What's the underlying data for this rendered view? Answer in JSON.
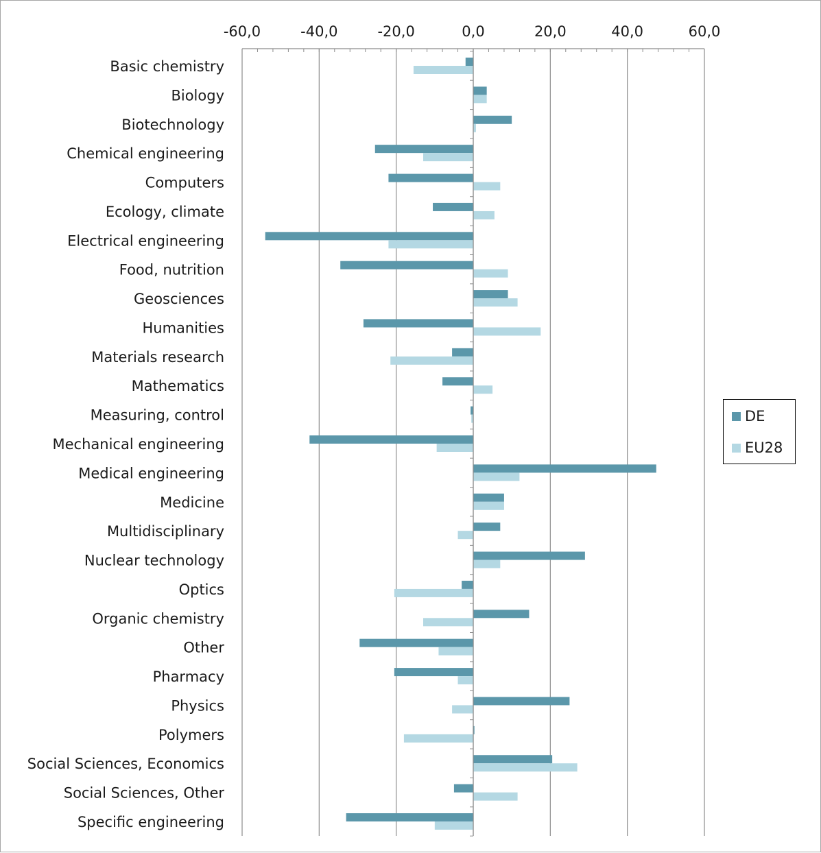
{
  "chart_data": {
    "type": "bar",
    "orientation": "horizontal",
    "categories": [
      "Basic chemistry",
      "Biology",
      "Biotechnology",
      "Chemical engineering",
      "Computers",
      "Ecology, climate",
      "Electrical engineering",
      "Food, nutrition",
      "Geosciences",
      "Humanities",
      "Materials research",
      "Mathematics",
      "Measuring, control",
      "Mechanical engineering",
      "Medical engineering",
      "Medicine",
      "Multidisciplinary",
      "Nuclear technology",
      "Optics",
      "Organic chemistry",
      "Other",
      "Pharmacy",
      "Physics",
      "Polymers",
      "Social Sciences, Economics",
      "Social Sciences, Other",
      "Specific engineering"
    ],
    "series": [
      {
        "name": "DE",
        "color": "#5b97aa",
        "values": [
          -2.0,
          3.5,
          10.0,
          -25.5,
          -22.0,
          -10.5,
          -54.0,
          -34.5,
          9.0,
          -28.5,
          -5.5,
          -8.0,
          -0.7,
          -42.5,
          47.5,
          8.0,
          7.0,
          29.0,
          -3.0,
          14.5,
          -29.5,
          -20.5,
          25.0,
          0.3,
          20.5,
          -5.0,
          -33.0
        ]
      },
      {
        "name": "EU28",
        "color": "#b4d8e3",
        "values": [
          -15.5,
          3.5,
          0.7,
          -13.0,
          7.0,
          5.5,
          -22.0,
          9.0,
          11.5,
          17.5,
          -21.5,
          5.0,
          -0.5,
          -9.5,
          12.0,
          8.0,
          -4.0,
          7.0,
          -20.5,
          -13.0,
          -9.0,
          -4.0,
          -5.5,
          -18.0,
          27.0,
          11.5,
          -10.0
        ]
      }
    ],
    "xlim": [
      -60,
      60
    ],
    "ticks": [
      "-60,0",
      "-40,0",
      "-20,0",
      "0,0",
      "20,0",
      "40,0",
      "60,0"
    ],
    "tick_values": [
      -60,
      -40,
      -20,
      0,
      20,
      40,
      60
    ],
    "grid": true,
    "legend_position": "right",
    "title": "",
    "xlabel": "",
    "ylabel": ""
  }
}
